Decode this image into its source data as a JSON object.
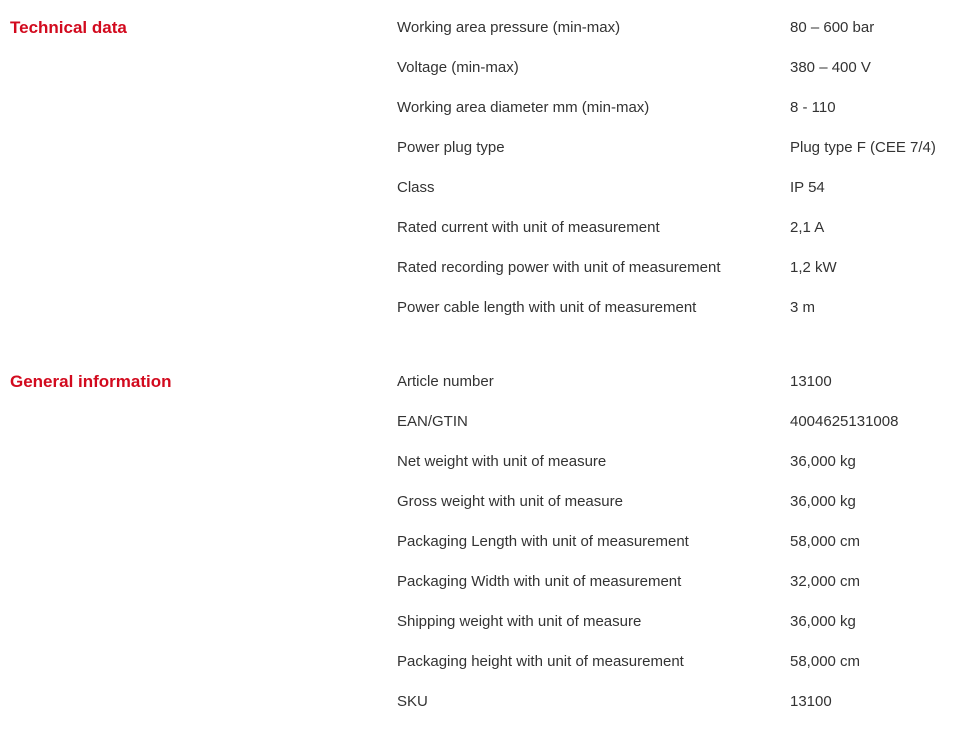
{
  "page": {
    "background_color": "#ffffff",
    "text_color": "#333333",
    "heading_color": "#d20a1e"
  },
  "sections": [
    {
      "heading": "Technical data",
      "rows": [
        {
          "label": "Working area pressure (min-max)",
          "value": "80 – 600 bar"
        },
        {
          "label": "Voltage (min-max)",
          "value": "380 – 400 V"
        },
        {
          "label": "Working area diameter mm (min-max)",
          "value": "8 - 110"
        },
        {
          "label": "Power plug type",
          "value": "Plug type F (CEE 7/4)"
        },
        {
          "label": "Class",
          "value": "IP 54"
        },
        {
          "label": "Rated current with unit of measurement",
          "value": "2,1 A"
        },
        {
          "label": "Rated recording power with unit of measurement",
          "value": "1,2 kW"
        },
        {
          "label": "Power cable length with unit of measurement",
          "value": "3 m"
        }
      ]
    },
    {
      "heading": "General information",
      "rows": [
        {
          "label": "Article number",
          "value": "13100"
        },
        {
          "label": "EAN/GTIN",
          "value": "4004625131008"
        },
        {
          "label": "Net weight with unit of measure",
          "value": "36,000 kg"
        },
        {
          "label": "Gross weight with unit of measure",
          "value": "36,000 kg"
        },
        {
          "label": "Packaging Length with unit of measurement",
          "value": "58,000 cm"
        },
        {
          "label": "Packaging Width with unit of measurement",
          "value": "32,000 cm"
        },
        {
          "label": "Shipping weight with unit of measure",
          "value": "36,000 kg"
        },
        {
          "label": "Packaging height with unit of measurement",
          "value": "58,000 cm"
        },
        {
          "label": "SKU",
          "value": "13100"
        }
      ]
    }
  ]
}
